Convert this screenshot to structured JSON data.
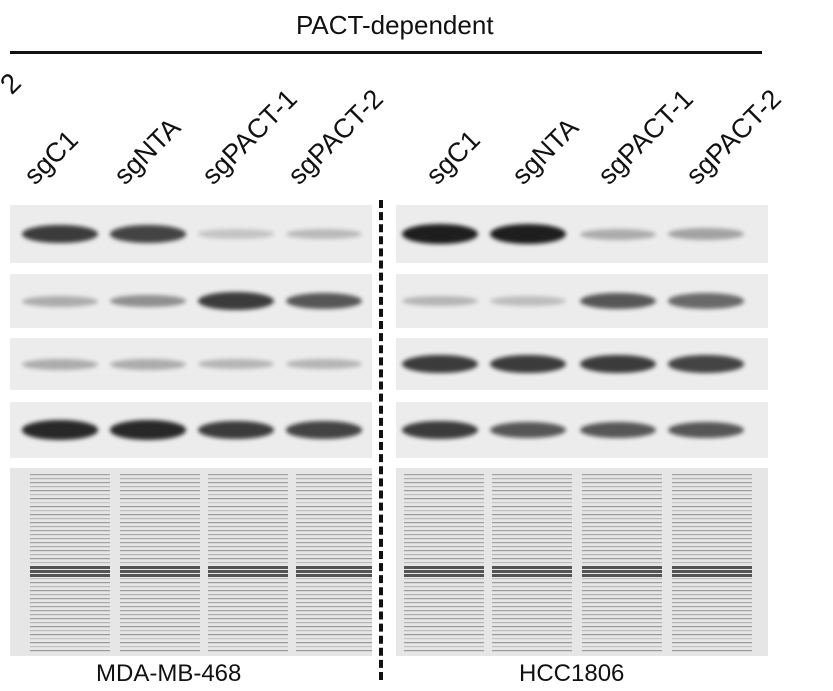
{
  "header": {
    "label": "PACT-dependent",
    "cut_label": "2"
  },
  "lanes": [
    "sgC1",
    "sgNTA",
    "sgPACT-1",
    "sgPACT-2"
  ],
  "cell_lines": [
    "MDA-MB-468",
    "HCC1806"
  ],
  "colors": {
    "blot_bg": "#ececec",
    "band": "#1a1a1a",
    "text": "#111111"
  },
  "panels": [
    {
      "name": "MDA-MB-468",
      "rows": [
        [
          0.85,
          0.8,
          0.12,
          0.18
        ],
        [
          0.25,
          0.4,
          0.85,
          0.7
        ],
        [
          0.25,
          0.25,
          0.2,
          0.2
        ],
        [
          0.95,
          0.95,
          0.85,
          0.8
        ]
      ]
    },
    {
      "name": "HCC1806",
      "rows": [
        [
          1.0,
          1.0,
          0.25,
          0.3
        ],
        [
          0.2,
          0.15,
          0.7,
          0.6
        ],
        [
          0.85,
          0.85,
          0.85,
          0.8
        ],
        [
          0.85,
          0.7,
          0.7,
          0.7
        ]
      ]
    }
  ]
}
